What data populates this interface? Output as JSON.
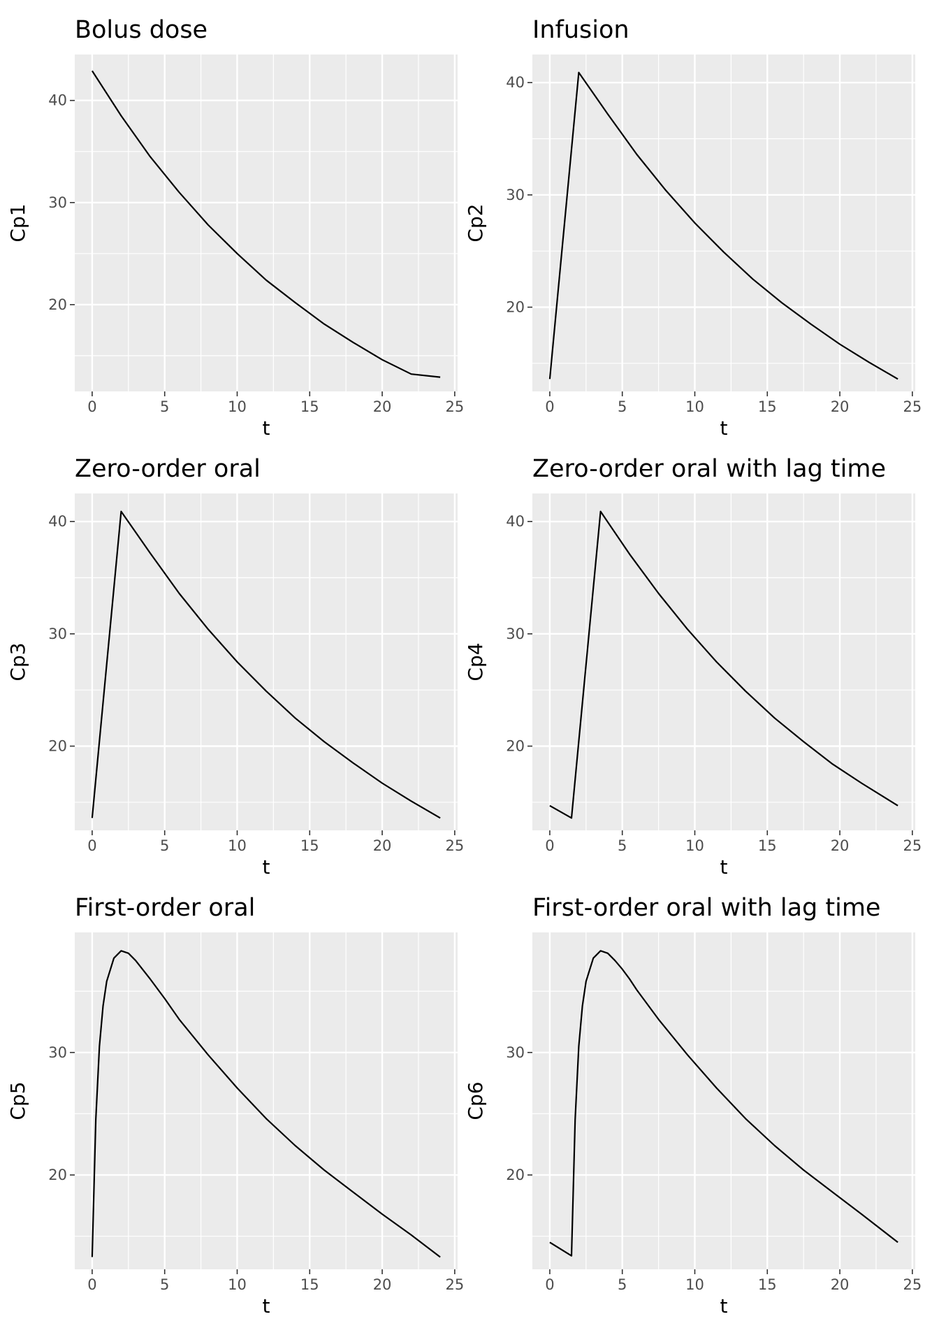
{
  "chart_data": [
    {
      "type": "line",
      "title": "Bolus dose",
      "xlabel": "t",
      "ylabel": "Cp1",
      "xlim": [
        -1.2,
        25.2
      ],
      "ylim": [
        11.5,
        44.5
      ],
      "xticks": [
        0,
        5,
        10,
        15,
        20,
        25
      ],
      "yticks": [
        20,
        30,
        40
      ],
      "grid": true,
      "x": [
        0,
        2,
        4,
        6,
        8,
        10,
        12,
        14,
        16,
        18,
        20,
        22,
        24
      ],
      "y": [
        42.9,
        38.5,
        34.5,
        31.0,
        27.8,
        25.0,
        22.4,
        20.2,
        18.1,
        16.3,
        14.6,
        13.2,
        12.9
      ]
    },
    {
      "type": "line",
      "title": "Infusion",
      "xlabel": "t",
      "ylabel": "Cp2",
      "xlim": [
        -1.2,
        25.2
      ],
      "ylim": [
        12.5,
        42.5
      ],
      "xticks": [
        0,
        5,
        10,
        15,
        20,
        25
      ],
      "yticks": [
        20,
        30,
        40
      ],
      "grid": true,
      "x": [
        0,
        2,
        4,
        6,
        8,
        10,
        12,
        14,
        16,
        18,
        20,
        22,
        24
      ],
      "y": [
        13.6,
        40.9,
        37.2,
        33.6,
        30.4,
        27.5,
        24.9,
        22.5,
        20.4,
        18.5,
        16.7,
        15.1,
        13.6
      ]
    },
    {
      "type": "line",
      "title": "Zero-order oral",
      "xlabel": "t",
      "ylabel": "Cp3",
      "xlim": [
        -1.2,
        25.2
      ],
      "ylim": [
        12.5,
        42.5
      ],
      "xticks": [
        0,
        5,
        10,
        15,
        20,
        25
      ],
      "yticks": [
        20,
        30,
        40
      ],
      "grid": true,
      "x": [
        0,
        2,
        4,
        6,
        8,
        10,
        12,
        14,
        16,
        18,
        20,
        22,
        24
      ],
      "y": [
        13.6,
        40.9,
        37.2,
        33.6,
        30.4,
        27.5,
        24.9,
        22.5,
        20.4,
        18.5,
        16.7,
        15.1,
        13.6
      ]
    },
    {
      "type": "line",
      "title": "Zero-order oral with lag time",
      "xlabel": "t",
      "ylabel": "Cp4",
      "xlim": [
        -1.2,
        25.2
      ],
      "ylim": [
        12.5,
        42.5
      ],
      "xticks": [
        0,
        5,
        10,
        15,
        20,
        25
      ],
      "yticks": [
        20,
        30,
        40
      ],
      "grid": true,
      "x": [
        0,
        1.5,
        3.5,
        5.5,
        7.5,
        9.5,
        11.5,
        13.5,
        15.5,
        17.5,
        19.5,
        21.5,
        24
      ],
      "y": [
        14.7,
        13.6,
        40.9,
        37.1,
        33.6,
        30.4,
        27.5,
        24.9,
        22.5,
        20.4,
        18.4,
        16.7,
        14.7
      ]
    },
    {
      "type": "line",
      "title": "First-order oral",
      "xlabel": "t",
      "ylabel": "Cp5",
      "xlim": [
        -1.2,
        25.2
      ],
      "ylim": [
        12.3,
        39.8
      ],
      "xticks": [
        0,
        5,
        10,
        15,
        20,
        25
      ],
      "yticks": [
        20,
        30
      ],
      "grid": true,
      "x": [
        0,
        0.25,
        0.5,
        0.75,
        1,
        1.5,
        2,
        2.5,
        3,
        4,
        5,
        6,
        8,
        10,
        12,
        14,
        16,
        18,
        20,
        22,
        24
      ],
      "y": [
        13.3,
        24.5,
        30.5,
        33.8,
        35.8,
        37.7,
        38.3,
        38.1,
        37.5,
        36.0,
        34.4,
        32.7,
        29.8,
        27.1,
        24.6,
        22.4,
        20.4,
        18.6,
        16.8,
        15.1,
        13.3
      ]
    },
    {
      "type": "line",
      "title": "First-order oral with lag time",
      "xlabel": "t",
      "ylabel": "Cp6",
      "xlim": [
        -1.2,
        25.2
      ],
      "ylim": [
        12.3,
        39.8
      ],
      "xticks": [
        0,
        5,
        10,
        15,
        20,
        25
      ],
      "yticks": [
        20,
        30
      ],
      "grid": true,
      "x": [
        0,
        1.5,
        1.75,
        2,
        2.25,
        2.5,
        3,
        3.5,
        4,
        4.5,
        5,
        5.5,
        6,
        7.5,
        9.5,
        11.5,
        13.5,
        15.5,
        17.5,
        19.5,
        21.5,
        24
      ],
      "y": [
        14.5,
        13.4,
        24.5,
        30.5,
        33.8,
        35.8,
        37.7,
        38.3,
        38.1,
        37.5,
        36.8,
        36.0,
        35.1,
        32.7,
        29.8,
        27.1,
        24.6,
        22.4,
        20.4,
        18.6,
        16.8,
        14.5
      ]
    }
  ]
}
